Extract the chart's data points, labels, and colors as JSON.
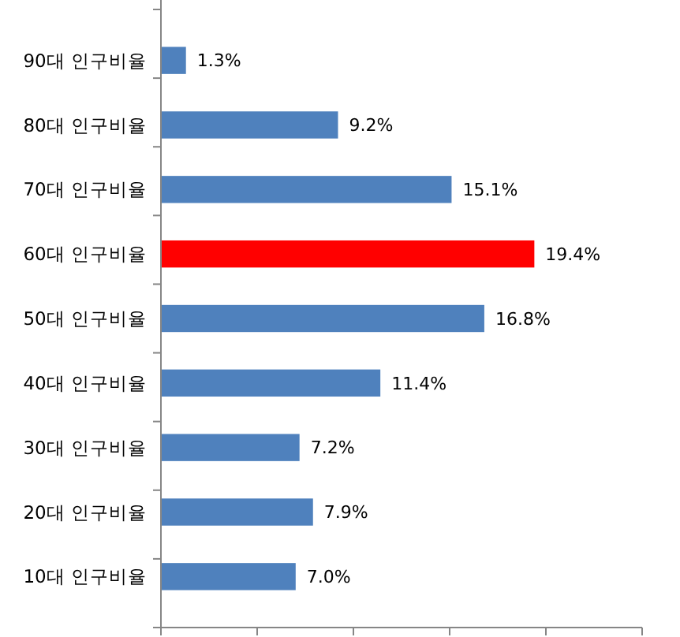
{
  "chart_data": {
    "type": "bar",
    "orientation": "horizontal",
    "categories": [
      "90대 인구비율",
      "80대 인구비율",
      "70대 인구비율",
      "60대 인구비율",
      "50대 인구비율",
      "40대 인구비율",
      "30대 인구비율",
      "20대 인구비율",
      "10대 인구비율"
    ],
    "values": [
      1.3,
      9.2,
      15.1,
      19.4,
      16.8,
      11.4,
      7.2,
      7.9,
      7.0
    ],
    "colors": [
      "#4f81bd",
      "#4f81bd",
      "#4f81bd",
      "#ff0000",
      "#4f81bd",
      "#4f81bd",
      "#4f81bd",
      "#4f81bd",
      "#4f81bd"
    ],
    "value_labels": [
      "1.3%",
      "9.2%",
      "15.1%",
      "19.4%",
      "16.8%",
      "11.4%",
      "7.2%",
      "7.9%",
      "7.0%"
    ],
    "xlim": [
      0,
      25
    ],
    "xticks": [
      {
        "value": 0,
        "label": null
      },
      {
        "value": 5,
        "label": null
      },
      {
        "value": 10,
        "label": null
      },
      {
        "value": 15,
        "label": null
      },
      {
        "value": 20,
        "label": null
      },
      {
        "value": 25,
        "label": null
      }
    ],
    "tick_labels": "y",
    "grid": false
  }
}
